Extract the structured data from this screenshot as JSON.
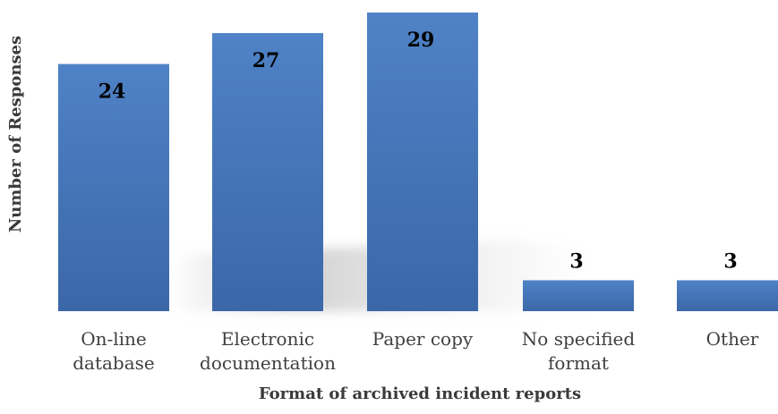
{
  "chart_data": {
    "type": "bar",
    "categories": [
      [
        "On-line",
        "database"
      ],
      [
        "Electronic",
        "documentation"
      ],
      [
        "Paper copy"
      ],
      [
        "No specified",
        "format"
      ],
      [
        "Other"
      ]
    ],
    "values": [
      24,
      27,
      29,
      3,
      3
    ],
    "xlabel": "Format of archived incident reports",
    "ylabel": "Number of Responses",
    "ylim": [
      0,
      29
    ],
    "grid": false,
    "legend": "none",
    "bar_color": "#4472c4",
    "bar_color_dark": "#3d68ad",
    "bar_color_light": "#4f7fc8",
    "label_color": "#000000"
  }
}
